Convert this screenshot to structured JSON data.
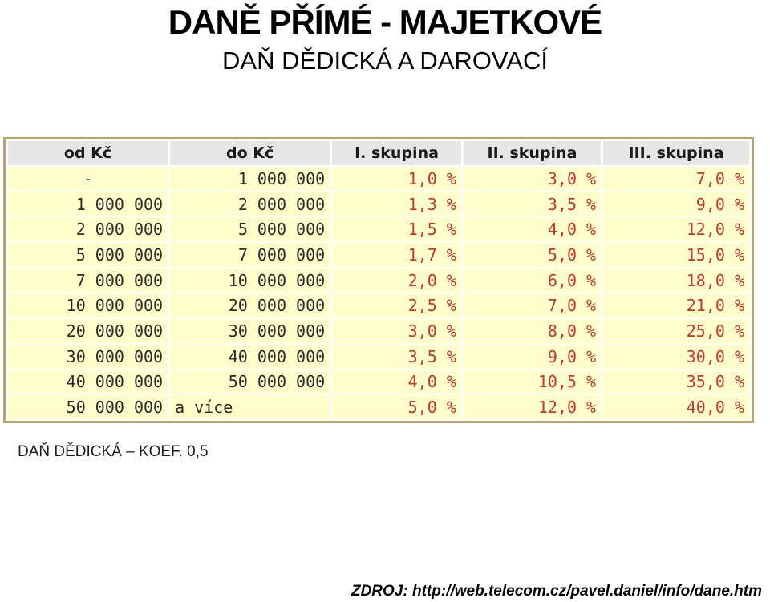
{
  "title": "DANĚ PŘÍMÉ - MAJETKOVÉ",
  "subtitle": "DAŇ DĚDICKÁ A DAROVACÍ",
  "table": {
    "headers": [
      "od Kč",
      "do Kč",
      "I. skupina",
      "II. skupina",
      "III. skupina"
    ],
    "rows": [
      [
        "-",
        "1 000 000",
        "1,0 %",
        "3,0 %",
        "7,0 %"
      ],
      [
        "1 000 000",
        "2 000 000",
        "1,3 %",
        "3,5 %",
        "9,0 %"
      ],
      [
        "2 000 000",
        "5 000 000",
        "1,5 %",
        "4,0 %",
        "12,0 %"
      ],
      [
        "5 000 000",
        "7 000 000",
        "1,7 %",
        "5,0 %",
        "15,0 %"
      ],
      [
        "7 000 000",
        "10 000 000",
        "2,0 %",
        "6,0 %",
        "18,0 %"
      ],
      [
        "10 000 000",
        "20 000 000",
        "2,5 %",
        "7,0 %",
        "21,0 %"
      ],
      [
        "20 000 000",
        "30 000 000",
        "3,0 %",
        "8,0 %",
        "25,0 %"
      ],
      [
        "30 000 000",
        "40 000 000",
        "3,5 %",
        "9,0 %",
        "30,0 %"
      ],
      [
        "40 000 000",
        "50 000 000",
        "4,0 %",
        "10,5 %",
        "35,0 %"
      ],
      [
        "50 000 000",
        "a více",
        "5,0 %",
        "12,0 %",
        "40,0 %"
      ]
    ]
  },
  "note": "DAŇ DĚDICKÁ – KOEF. 0,5",
  "source": "ZDROJ: http://web.telecom.cz/pavel.daniel/info/dane.htm",
  "colors": {
    "header_bg": "#e6e6e6",
    "cell_bg": "#ffffcc",
    "percent_text": "#c83232",
    "frame": "#b8a56e"
  }
}
